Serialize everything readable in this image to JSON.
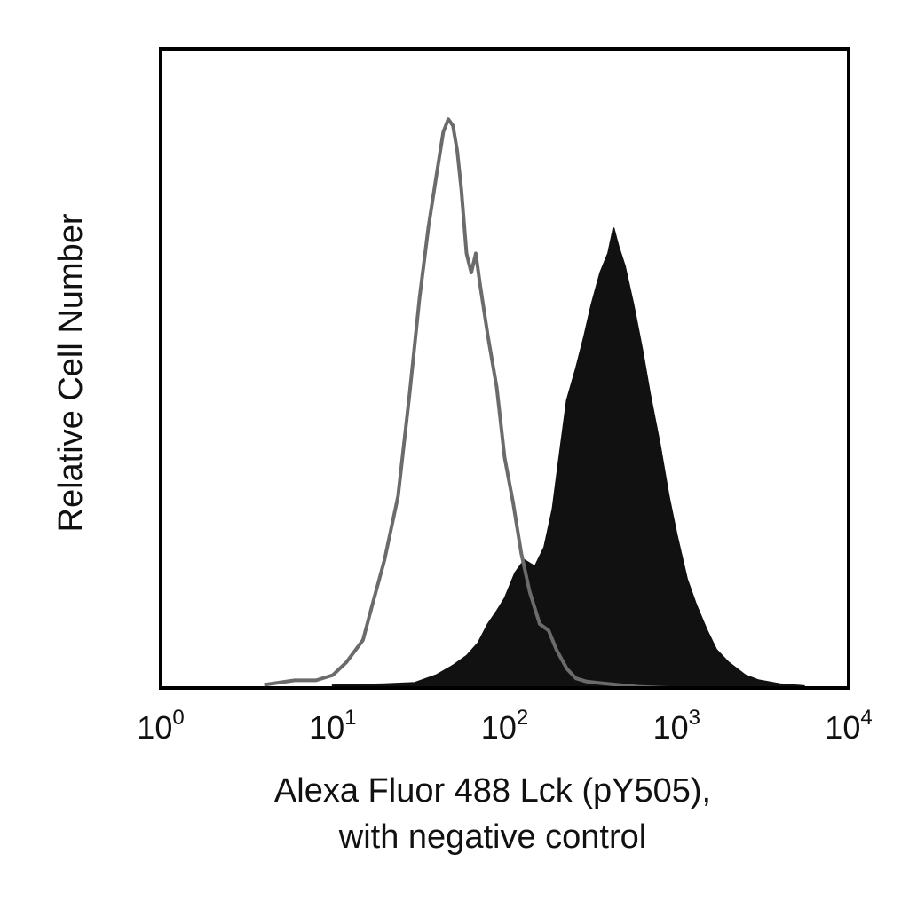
{
  "chart_data": {
    "type": "area",
    "xscale": "log",
    "xlim": [
      1,
      10000
    ],
    "ylim": [
      0,
      1.0
    ],
    "grid": false,
    "xlabel": [
      "Alexa Fluor 488 Lck (pY505),",
      "with negative control"
    ],
    "ylabel": "Relative Cell Number",
    "x_ticks": [
      {
        "base": "10",
        "exp": "0",
        "value": 1
      },
      {
        "base": "10",
        "exp": "1",
        "value": 10
      },
      {
        "base": "10",
        "exp": "2",
        "value": 100
      },
      {
        "base": "10",
        "exp": "3",
        "value": 1000
      },
      {
        "base": "10",
        "exp": "4",
        "value": 10000
      }
    ],
    "series": [
      {
        "role": "negative-control",
        "style": "outline",
        "color": "#6b6b6b",
        "points": [
          [
            4,
            0.005
          ],
          [
            6,
            0.012
          ],
          [
            8,
            0.012
          ],
          [
            10,
            0.02
          ],
          [
            12,
            0.04
          ],
          [
            15,
            0.075
          ],
          [
            17,
            0.13
          ],
          [
            20,
            0.2
          ],
          [
            24,
            0.3
          ],
          [
            28,
            0.46
          ],
          [
            32,
            0.61
          ],
          [
            36,
            0.72
          ],
          [
            40,
            0.8
          ],
          [
            44,
            0.87
          ],
          [
            47,
            0.89
          ],
          [
            50,
            0.88
          ],
          [
            53,
            0.84
          ],
          [
            56,
            0.78
          ],
          [
            60,
            0.68
          ],
          [
            64,
            0.65
          ],
          [
            68,
            0.68
          ],
          [
            72,
            0.63
          ],
          [
            80,
            0.55
          ],
          [
            90,
            0.47
          ],
          [
            100,
            0.36
          ],
          [
            112,
            0.29
          ],
          [
            125,
            0.21
          ],
          [
            140,
            0.15
          ],
          [
            160,
            0.1
          ],
          [
            180,
            0.09
          ],
          [
            200,
            0.06
          ],
          [
            230,
            0.03
          ],
          [
            260,
            0.015
          ],
          [
            300,
            0.01
          ],
          [
            350,
            0.008
          ],
          [
            450,
            0.005
          ],
          [
            600,
            0.002
          ],
          [
            900,
            0.0
          ]
        ]
      },
      {
        "role": "stained",
        "style": "filled",
        "color": "#111111",
        "points": [
          [
            10,
            0.004
          ],
          [
            20,
            0.006
          ],
          [
            30,
            0.008
          ],
          [
            40,
            0.02
          ],
          [
            50,
            0.035
          ],
          [
            60,
            0.05
          ],
          [
            70,
            0.07
          ],
          [
            80,
            0.1
          ],
          [
            90,
            0.12
          ],
          [
            100,
            0.14
          ],
          [
            115,
            0.18
          ],
          [
            130,
            0.2
          ],
          [
            150,
            0.19
          ],
          [
            170,
            0.22
          ],
          [
            190,
            0.28
          ],
          [
            210,
            0.37
          ],
          [
            230,
            0.45
          ],
          [
            260,
            0.5
          ],
          [
            290,
            0.55
          ],
          [
            320,
            0.6
          ],
          [
            360,
            0.65
          ],
          [
            400,
            0.68
          ],
          [
            430,
            0.72
          ],
          [
            460,
            0.69
          ],
          [
            500,
            0.66
          ],
          [
            560,
            0.6
          ],
          [
            630,
            0.53
          ],
          [
            700,
            0.46
          ],
          [
            800,
            0.38
          ],
          [
            900,
            0.3
          ],
          [
            1000,
            0.24
          ],
          [
            1150,
            0.17
          ],
          [
            1300,
            0.13
          ],
          [
            1500,
            0.09
          ],
          [
            1700,
            0.06
          ],
          [
            2000,
            0.04
          ],
          [
            2500,
            0.02
          ],
          [
            3000,
            0.012
          ],
          [
            4000,
            0.006
          ],
          [
            5500,
            0.003
          ]
        ]
      }
    ]
  }
}
